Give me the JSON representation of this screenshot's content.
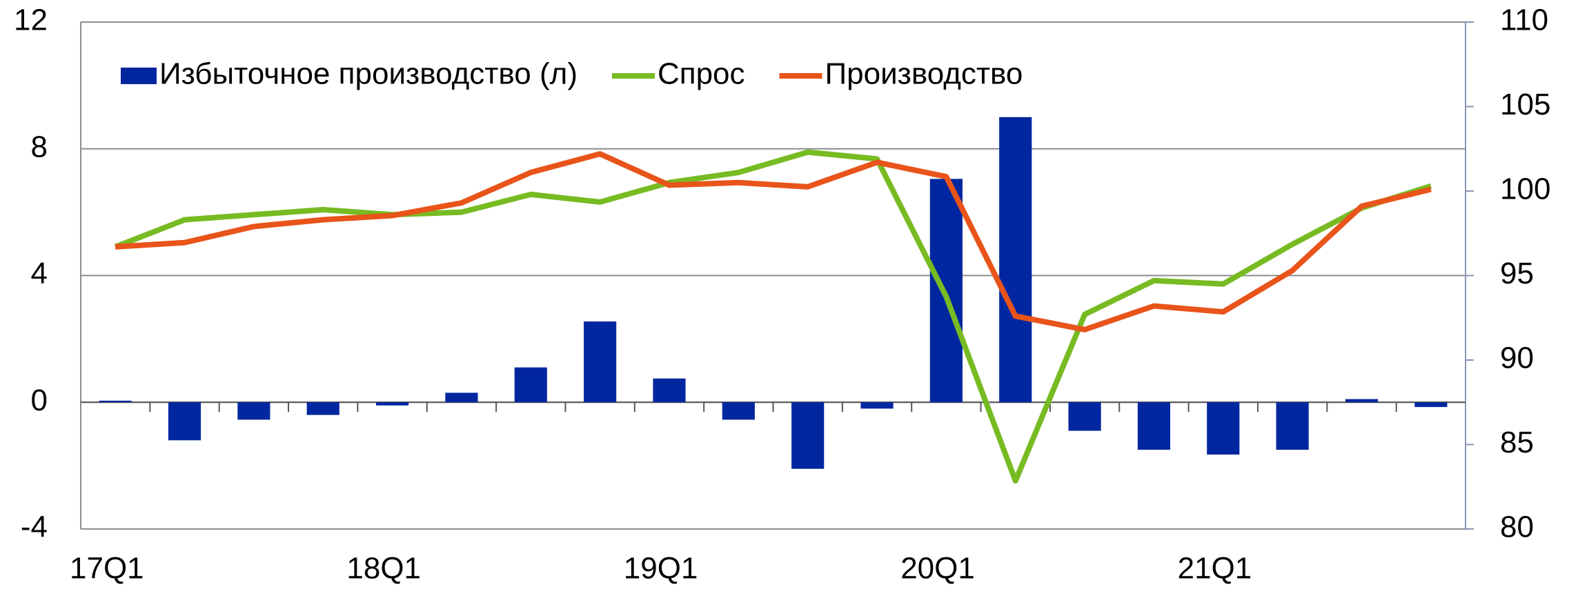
{
  "chart_data": {
    "type": "bar_line",
    "categories": [
      "17Q1",
      null,
      null,
      null,
      "18Q1",
      null,
      null,
      null,
      "19Q1",
      null,
      null,
      null,
      "20Q1",
      null,
      null,
      null,
      "21Q1",
      null,
      null,
      null
    ],
    "series": [
      {
        "name": "Избыточное производство (л)",
        "type": "bar",
        "color": "#0027a0",
        "values": [
          0.05,
          -1.2,
          -0.55,
          -0.4,
          -0.1,
          0.3,
          1.1,
          2.55,
          0.75,
          -0.55,
          -2.1,
          -0.2,
          7.05,
          9.0,
          -0.9,
          -1.5,
          -1.65,
          -1.5,
          0.1,
          -0.15
        ]
      },
      {
        "name": "Спрос",
        "type": "line",
        "axis": "y2",
        "color": "#77bb22",
        "values": [
          96.7,
          98.3,
          98.6,
          98.9,
          98.6,
          98.75,
          99.8,
          99.35,
          100.5,
          101.1,
          102.3,
          101.9,
          93.75,
          82.85,
          92.7,
          94.7,
          94.5,
          96.85,
          99.0,
          100.3
        ]
      },
      {
        "name": "Производство",
        "type": "line",
        "axis": "y2",
        "color": "#e8541a",
        "values": [
          96.7,
          96.95,
          97.9,
          98.3,
          98.55,
          99.3,
          101.1,
          102.2,
          100.35,
          100.5,
          100.25,
          101.7,
          100.85,
          92.6,
          91.8,
          93.2,
          92.85,
          95.3,
          99.1,
          100.1
        ]
      }
    ],
    "ylim": [
      -4,
      12
    ],
    "yticks": [
      -4,
      0,
      4,
      8,
      12
    ],
    "y2lim": [
      80,
      110
    ],
    "y2ticks": [
      80,
      85,
      90,
      95,
      100,
      105,
      110
    ],
    "grid": true,
    "legend": "top"
  }
}
